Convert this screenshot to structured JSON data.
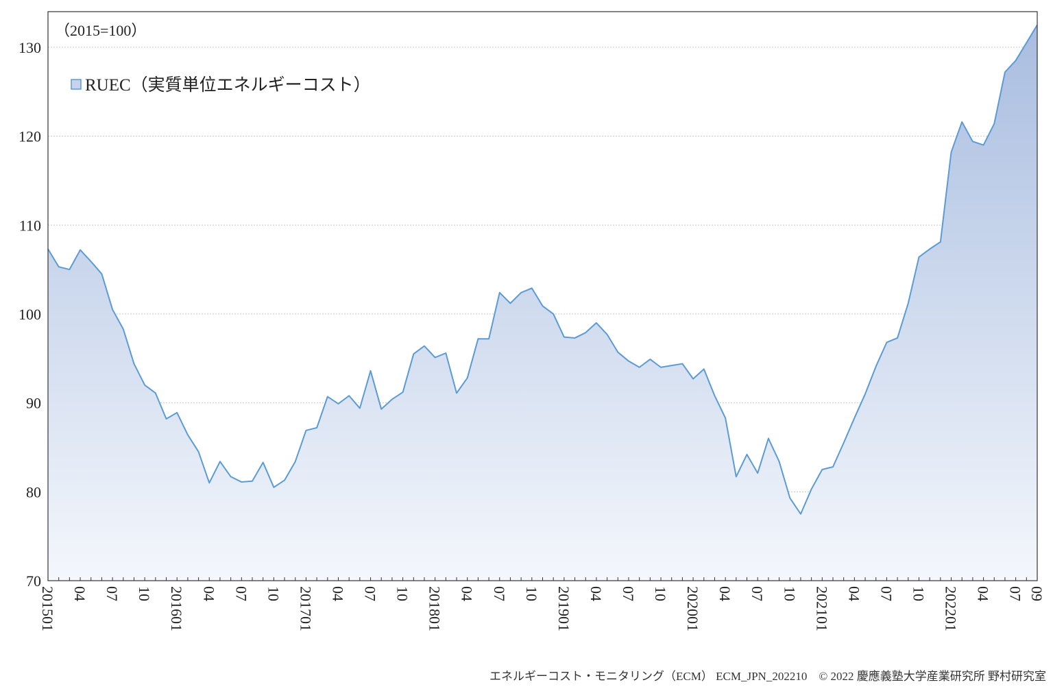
{
  "chart_data": {
    "type": "area",
    "note": "（2015=100）",
    "legend_label": "RUEC（実質単位エネルギーコスト）",
    "legend_position": "top-left",
    "ylim": [
      70,
      134
    ],
    "y_ticks": [
      "70",
      "80",
      "90",
      "100",
      "110",
      "120",
      "130"
    ],
    "gridlines": true,
    "colors": {
      "line": "#5b9bd5",
      "fill_top": "#a9bde0",
      "fill_bottom": "#f4f7fc"
    },
    "x_labels": [
      "201501",
      "04",
      "07",
      "10",
      "201601",
      "04",
      "07",
      "10",
      "201701",
      "04",
      "07",
      "10",
      "201801",
      "04",
      "07",
      "10",
      "201901",
      "04",
      "07",
      "10",
      "202001",
      "04",
      "07",
      "10",
      "202101",
      "04",
      "07",
      "10",
      "202201",
      "04",
      "07",
      "09"
    ],
    "x": [
      "201501",
      "201502",
      "201503",
      "201504",
      "201505",
      "201506",
      "201507",
      "201508",
      "201509",
      "201510",
      "201511",
      "201512",
      "201601",
      "201602",
      "201603",
      "201604",
      "201605",
      "201606",
      "201607",
      "201608",
      "201609",
      "201610",
      "201611",
      "201612",
      "201701",
      "201702",
      "201703",
      "201704",
      "201705",
      "201706",
      "201707",
      "201708",
      "201709",
      "201710",
      "201711",
      "201712",
      "201801",
      "201802",
      "201803",
      "201804",
      "201805",
      "201806",
      "201807",
      "201808",
      "201809",
      "201810",
      "201811",
      "201812",
      "201901",
      "201902",
      "201903",
      "201904",
      "201905",
      "201906",
      "201907",
      "201908",
      "201909",
      "201910",
      "201911",
      "201912",
      "202001",
      "202002",
      "202003",
      "202004",
      "202005",
      "202006",
      "202007",
      "202008",
      "202009",
      "202010",
      "202011",
      "202012",
      "202101",
      "202102",
      "202103",
      "202104",
      "202105",
      "202106",
      "202107",
      "202108",
      "202109",
      "202110",
      "202111",
      "202112",
      "202201",
      "202202",
      "202203",
      "202204",
      "202205",
      "202206",
      "202207",
      "202208",
      "202209"
    ],
    "series": [
      {
        "name": "RUEC（実質単位エネルギーコスト）",
        "values": [
          107.3,
          105.3,
          105.0,
          107.2,
          105.9,
          104.5,
          100.5,
          98.3,
          94.4,
          92.0,
          91.1,
          88.2,
          88.9,
          86.4,
          84.5,
          81.0,
          83.4,
          81.7,
          81.1,
          81.2,
          83.3,
          80.5,
          81.3,
          83.4,
          86.9,
          87.2,
          90.7,
          89.9,
          90.8,
          89.4,
          93.6,
          89.3,
          90.4,
          91.2,
          95.5,
          96.4,
          95.1,
          95.6,
          91.1,
          92.8,
          97.2,
          97.2,
          102.4,
          101.2,
          102.4,
          102.9,
          100.9,
          100.0,
          97.4,
          97.3,
          97.9,
          99.0,
          97.7,
          95.7,
          94.7,
          94.0,
          94.9,
          94.0,
          94.2,
          94.4,
          92.7,
          93.8,
          90.8,
          88.3,
          81.7,
          84.2,
          82.1,
          86.0,
          83.4,
          79.3,
          77.5,
          80.3,
          82.5,
          82.8,
          85.5,
          88.3,
          91.0,
          94.1,
          96.8,
          97.3,
          101.2,
          106.4,
          107.3,
          108.1,
          118.2,
          121.6,
          119.4,
          119.0,
          121.4,
          127.2,
          128.5,
          130.5,
          132.5
        ]
      }
    ]
  },
  "footer": "エネルギーコスト・モニタリング（ECM） ECM_JPN_202210　© 2022 慶應義塾大学産業研究所  野村研究室"
}
